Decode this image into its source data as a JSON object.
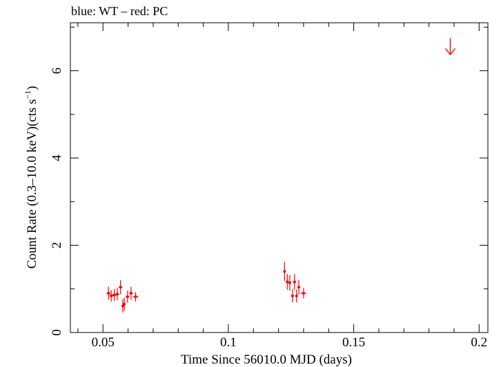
{
  "chart_data": {
    "type": "scatter",
    "title": "blue: WT – red: PC",
    "xlabel": "Time Since 56010.0 MJD (days)",
    "ylabel_main": "Count Rate (0.3–10.0 keV)(cts s",
    "ylabel_sup": "−1",
    "ylabel_close": ")",
    "xlim": [
      0.037,
      0.2035
    ],
    "ylim": [
      0,
      7.1
    ],
    "x_major_ticks": [
      0.05,
      0.1,
      0.15,
      0.2
    ],
    "x_tick_labels": [
      "0.05",
      "0.1",
      "0.15",
      "0.2"
    ],
    "x_minor_step": 0.01,
    "y_major_ticks": [
      0,
      2,
      4,
      6
    ],
    "y_tick_labels": [
      "0",
      "2",
      "4",
      "6"
    ],
    "y_minor_step": 1,
    "grid": false,
    "series": [
      {
        "name": "PC",
        "color": "#ff0000",
        "points": [
          {
            "x": 0.0522,
            "y": 0.9,
            "xerr": 0.0008,
            "yerr": 0.15
          },
          {
            "x": 0.0533,
            "y": 0.84,
            "xerr": 0.0008,
            "yerr": 0.13
          },
          {
            "x": 0.0545,
            "y": 0.86,
            "xerr": 0.0008,
            "yerr": 0.14
          },
          {
            "x": 0.0557,
            "y": 0.88,
            "xerr": 0.0008,
            "yerr": 0.14
          },
          {
            "x": 0.057,
            "y": 1.04,
            "xerr": 0.0008,
            "yerr": 0.16
          },
          {
            "x": 0.0579,
            "y": 0.61,
            "xerr": 0.0005,
            "yerr": 0.15
          },
          {
            "x": 0.0585,
            "y": 0.65,
            "xerr": 0.0005,
            "yerr": 0.15
          },
          {
            "x": 0.0598,
            "y": 0.82,
            "xerr": 0.0008,
            "yerr": 0.14
          },
          {
            "x": 0.0612,
            "y": 0.9,
            "xerr": 0.0008,
            "yerr": 0.15
          },
          {
            "x": 0.063,
            "y": 0.82,
            "xerr": 0.0012,
            "yerr": 0.11
          },
          {
            "x": 0.1224,
            "y": 1.4,
            "xerr": 0.0005,
            "yerr": 0.22
          },
          {
            "x": 0.1235,
            "y": 1.16,
            "xerr": 0.0006,
            "yerr": 0.18
          },
          {
            "x": 0.1245,
            "y": 1.14,
            "xerr": 0.0006,
            "yerr": 0.18
          },
          {
            "x": 0.1256,
            "y": 0.84,
            "xerr": 0.0006,
            "yerr": 0.15
          },
          {
            "x": 0.1264,
            "y": 1.16,
            "xerr": 0.0006,
            "yerr": 0.18
          },
          {
            "x": 0.1272,
            "y": 0.84,
            "xerr": 0.0005,
            "yerr": 0.15
          },
          {
            "x": 0.1281,
            "y": 1.04,
            "xerr": 0.0006,
            "yerr": 0.17
          },
          {
            "x": 0.13,
            "y": 0.9,
            "xerr": 0.0012,
            "yerr": 0.12
          }
        ]
      }
    ],
    "upper_limits": [
      {
        "name": "PC",
        "color": "#ff0000",
        "x": 0.1885,
        "y": 6.4
      }
    ]
  }
}
